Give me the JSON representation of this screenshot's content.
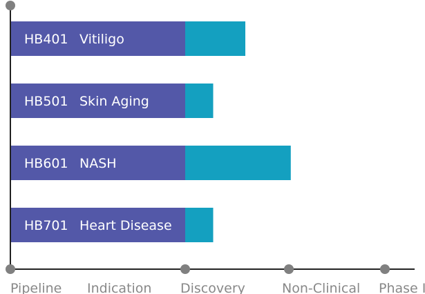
{
  "chart_data": {
    "type": "bar",
    "orientation": "horizontal",
    "stacked": true,
    "stages": [
      "Pipeline",
      "Indication",
      "Discovery",
      "Non-Clinical",
      "Phase I"
    ],
    "stage_markers": [
      "Pipeline",
      "Discovery",
      "Non-Clinical",
      "Phase I"
    ],
    "rows": [
      {
        "code": "HB401",
        "indication": "Vitiligo",
        "progress": 2.58
      },
      {
        "code": "HB501",
        "indication": "Skin Aging",
        "progress": 2.27
      },
      {
        "code": "HB601",
        "indication": "NASH",
        "progress": 3.02
      },
      {
        "code": "HB701",
        "indication": "Heart Disease",
        "progress": 2.27
      }
    ],
    "colors": {
      "label_segment": "#5358a8",
      "progress_segment": "#14a0c0",
      "axis": "#222222",
      "marker": "#808080",
      "axis_text": "#888888"
    }
  }
}
